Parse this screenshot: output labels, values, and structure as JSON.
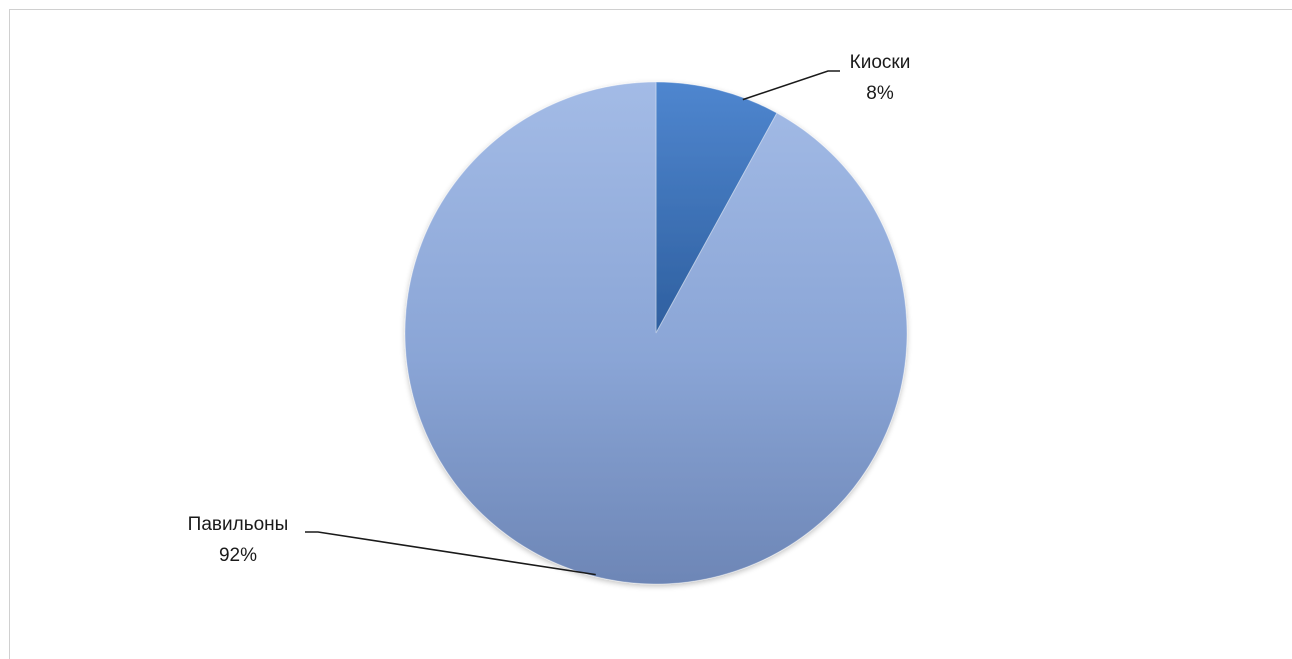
{
  "chart_data": {
    "type": "pie",
    "categories": [
      "Киоски",
      "Павильоны"
    ],
    "values": [
      8,
      92
    ],
    "labels": [
      {
        "name": "Киоски",
        "value_text": "8%"
      },
      {
        "name": "Павильоны",
        "value_text": "92%"
      }
    ],
    "colors": [
      "#3c6fb5",
      "#89a6d6"
    ],
    "start_angle_deg": 0,
    "direction": "clockwise",
    "legend": "none"
  }
}
